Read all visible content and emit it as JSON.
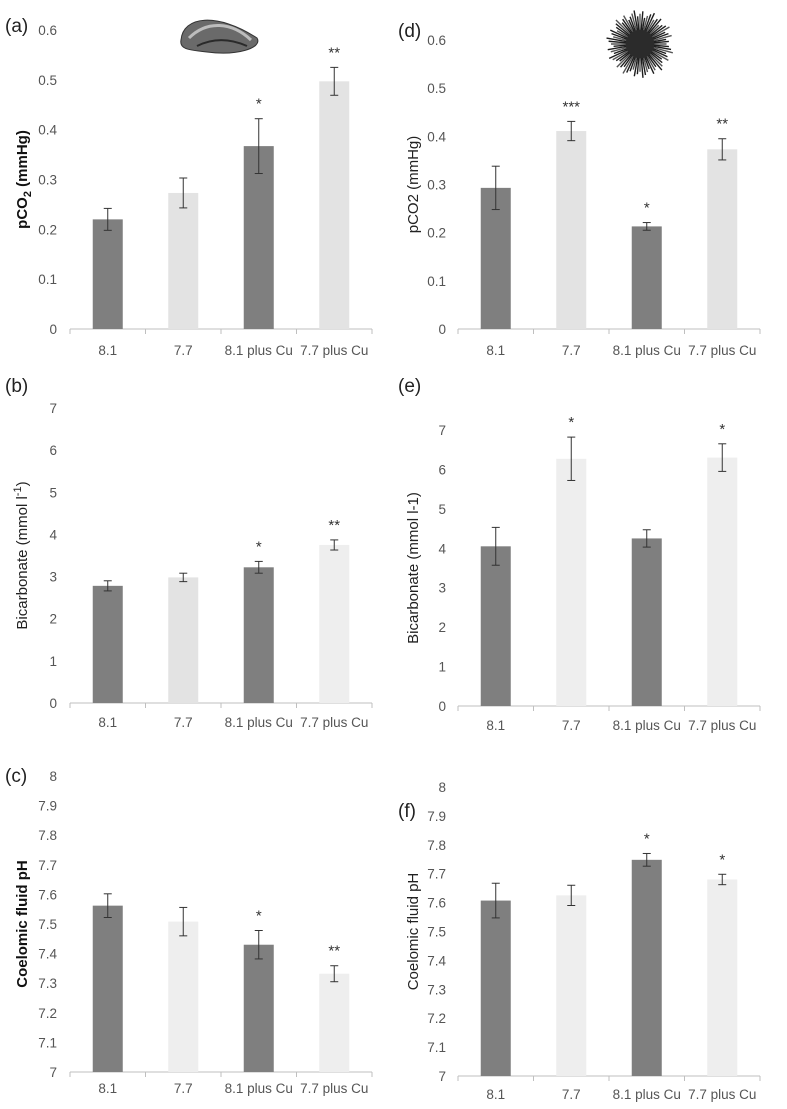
{
  "chart_data": [
    {
      "panel": "(a)",
      "type": "bar",
      "ylabel_main": "pCO",
      "ylabel_sub": "2",
      "ylabel_tail": " (mmHg)",
      "categories": [
        "8.1",
        "7.7",
        "8.1 plus Cu",
        "7.7 plus Cu"
      ],
      "values": [
        0.22,
        0.273,
        0.367,
        0.497
      ],
      "errors": [
        0.022,
        0.03,
        0.055,
        0.028
      ],
      "significance": [
        "",
        "",
        "*",
        "**"
      ],
      "bar_colors": [
        "#7f7f7f",
        "#e3e3e3",
        "#7f7f7f",
        "#e3e3e3"
      ],
      "ylim": [
        0,
        0.6
      ],
      "yticks": [
        "0",
        "0.1",
        "0.2",
        "0.3",
        "0.4",
        "0.5",
        "0.6"
      ],
      "ytick_values": [
        0,
        0.1,
        0.2,
        0.3,
        0.4,
        0.5,
        0.6
      ],
      "image": "mussel-shell"
    },
    {
      "panel": "(b)",
      "type": "bar",
      "ylabel_main": "Bicarbonate  (mmol l",
      "ylabel_sup": "-1",
      "ylabel_tail": ")",
      "categories": [
        "8.1",
        "7.7",
        "8.1 plus Cu",
        "7.7 plus Cu"
      ],
      "values": [
        2.78,
        2.98,
        3.22,
        3.75
      ],
      "errors": [
        0.12,
        0.1,
        0.14,
        0.12
      ],
      "significance": [
        "",
        "",
        "*",
        "**"
      ],
      "bar_colors": [
        "#7f7f7f",
        "#e3e3e3",
        "#7f7f7f",
        "#eeeeee"
      ],
      "ylim": [
        0,
        7
      ],
      "yticks": [
        "0",
        "1",
        "2",
        "3",
        "4",
        "5",
        "6",
        "7"
      ],
      "ytick_values": [
        0,
        1,
        2,
        3,
        4,
        5,
        6,
        7
      ]
    },
    {
      "panel": "(c)",
      "type": "bar",
      "ylabel_main": "Coelomic fluid pH",
      "categories": [
        "8.1",
        "7.7",
        "8.1 plus Cu",
        "7.7 plus Cu"
      ],
      "values": [
        7.562,
        7.508,
        7.43,
        7.332
      ],
      "errors": [
        0.04,
        0.048,
        0.048,
        0.027
      ],
      "significance": [
        "",
        "",
        "*",
        "**"
      ],
      "bar_colors": [
        "#7f7f7f",
        "#eeeeee",
        "#7f7f7f",
        "#eeeeee"
      ],
      "ylim": [
        7,
        8
      ],
      "yticks": [
        "7",
        "7.1",
        "7.2",
        "7.3",
        "7.4",
        "7.5",
        "7.6",
        "7.7",
        "7.8",
        "7.9",
        "8"
      ],
      "ytick_values": [
        7,
        7.1,
        7.2,
        7.3,
        7.4,
        7.5,
        7.6,
        7.7,
        7.8,
        7.9,
        8
      ]
    },
    {
      "panel": "(d)",
      "type": "bar",
      "ylabel_main": "pCO2 (mmHg)",
      "categories": [
        "8.1",
        "7.7",
        "8.1 plus Cu",
        "7.7 plus Cu"
      ],
      "values": [
        0.293,
        0.411,
        0.213,
        0.373
      ],
      "errors": [
        0.045,
        0.02,
        0.008,
        0.022
      ],
      "significance": [
        "",
        "***",
        "*",
        "**"
      ],
      "bar_colors": [
        "#7f7f7f",
        "#e3e3e3",
        "#7f7f7f",
        "#e3e3e3"
      ],
      "ylim": [
        0,
        0.6
      ],
      "yticks": [
        "0",
        "0.1",
        "0.2",
        "0.3",
        "0.4",
        "0.5",
        "0.6"
      ],
      "ytick_values": [
        0,
        0.1,
        0.2,
        0.3,
        0.4,
        0.5,
        0.6
      ],
      "image": "sea-urchin"
    },
    {
      "panel": "(e)",
      "type": "bar",
      "ylabel_main": "Bicarbonate (mmol l-1)",
      "categories": [
        "8.1",
        "7.7",
        "8.1 plus Cu",
        "7.7 plus Cu"
      ],
      "values": [
        4.05,
        6.27,
        4.25,
        6.3
      ],
      "errors": [
        0.48,
        0.55,
        0.22,
        0.35
      ],
      "significance": [
        "",
        "*",
        "",
        "*"
      ],
      "bar_colors": [
        "#7f7f7f",
        "#eeeeee",
        "#7f7f7f",
        "#eeeeee"
      ],
      "ylim": [
        0,
        7
      ],
      "yticks": [
        "0",
        "1",
        "2",
        "3",
        "4",
        "5",
        "6",
        "7"
      ],
      "ytick_values": [
        0,
        1,
        2,
        3,
        4,
        5,
        6,
        7
      ]
    },
    {
      "panel": "(f)",
      "type": "bar",
      "ylabel_main": "Coelomic fluid pH",
      "categories": [
        "8.1",
        "7.7",
        "8.1 plus Cu",
        "7.7 plus Cu"
      ],
      "values": [
        7.607,
        7.625,
        7.748,
        7.68
      ],
      "errors": [
        0.06,
        0.035,
        0.022,
        0.018
      ],
      "significance": [
        "",
        "",
        "*",
        "*"
      ],
      "bar_colors": [
        "#7f7f7f",
        "#eeeeee",
        "#7f7f7f",
        "#eeeeee"
      ],
      "ylim": [
        7,
        8
      ],
      "yticks": [
        "7",
        "7.1",
        "7.2",
        "7.3",
        "7.4",
        "7.5",
        "7.6",
        "7.7",
        "7.8",
        "7.9",
        "8"
      ],
      "ytick_values": [
        7,
        7.1,
        7.2,
        7.3,
        7.4,
        7.5,
        7.6,
        7.7,
        7.8,
        7.9,
        8
      ]
    }
  ]
}
